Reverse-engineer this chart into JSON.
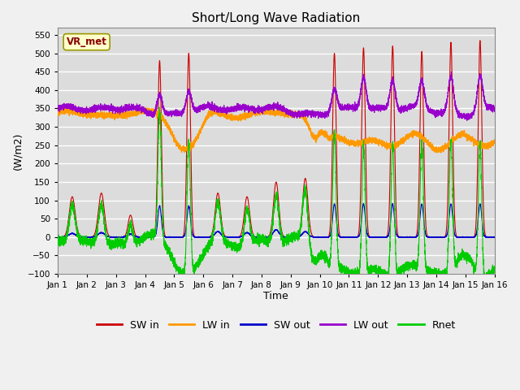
{
  "title": "Short/Long Wave Radiation",
  "xlabel": "Time",
  "ylabel": "(W/m2)",
  "ylim": [
    -100,
    570
  ],
  "yticks": [
    -100,
    -50,
    0,
    50,
    100,
    150,
    200,
    250,
    300,
    350,
    400,
    450,
    500,
    550
  ],
  "xlim": [
    0,
    15
  ],
  "xtick_labels": [
    "Jan 1",
    "Jan 2",
    "Jan 3",
    "Jan 4",
    "Jan 5",
    "Jan 6",
    "Jan 7",
    "Jan 8",
    "Jan 9",
    "Jan 10",
    "Jan 11",
    "Jan 12",
    "Jan 13",
    "Jan 14",
    "Jan 15",
    "Jan 16"
  ],
  "colors": {
    "SW_in": "#cc0000",
    "LW_in": "#ff9900",
    "SW_out": "#0000cc",
    "LW_out": "#9900cc",
    "Rnet": "#00cc00"
  },
  "legend_labels": [
    "SW in",
    "LW in",
    "SW out",
    "LW out",
    "Rnet"
  ],
  "annotation_text": "VR_met",
  "bg_color": "#dcdcdc",
  "grid_color": "#ffffff",
  "n_points": 7200
}
